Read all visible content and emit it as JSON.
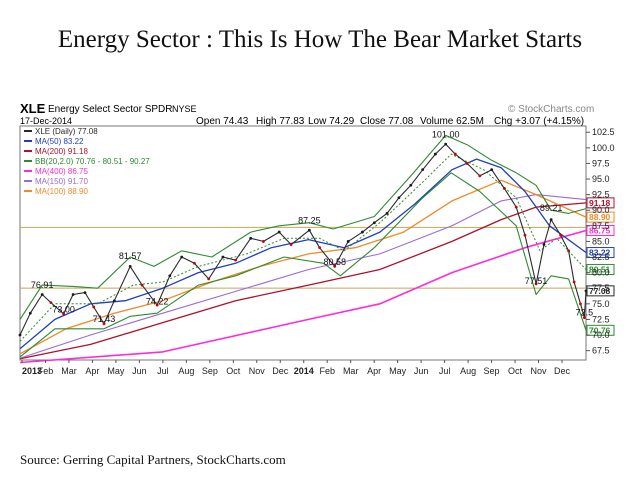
{
  "headline": "Energy Sector : This Is How The Bear Market Starts",
  "source": "Source: Gerring Capital Partners, StockCharts.com",
  "colors": {
    "price": "#2a2a2a",
    "up": "#1a1a1a",
    "down": "#cc0000",
    "ma50": "#1f3fbf",
    "ma200": "#b0102c",
    "bb": "#2e8b2e",
    "ma400": "#ff2bd6",
    "ma150": "#9a6bd9",
    "ma100": "#f08a2a",
    "hline": "#c8a45a",
    "axis": "#555555",
    "grid": "#cccccc"
  },
  "chart_data": {
    "type": "line",
    "header": {
      "ticker": "XLE",
      "name": "Energy Select Sector SPDR",
      "exchange": "NYSE",
      "date": "17-Dec-2014",
      "open": "Open 74.43",
      "high": "High 77.83",
      "low": "Low 74.29",
      "close": "Close 77.08",
      "volume": "Volume 62.5M",
      "change": "Chg +3.07 (+4.15%)",
      "watermark": "© StockCharts.com"
    },
    "legend": [
      {
        "key": "price",
        "text": "XLE (Daily) 77.08"
      },
      {
        "key": "ma50",
        "text": "MA(50) 83.22"
      },
      {
        "key": "ma200",
        "text": "MA(200) 91.18"
      },
      {
        "key": "bb",
        "text": "BB(20,2.0) 70.76 - 80.51 - 90.27"
      },
      {
        "key": "ma400",
        "text": "MA(400) 86.75"
      },
      {
        "key": "ma150",
        "text": "MA(150) 91.70"
      },
      {
        "key": "ma100",
        "text": "MA(100) 88.90"
      }
    ],
    "x_labels": [
      "2013",
      "Feb",
      "Mar",
      "Apr",
      "May",
      "Jun",
      "Jul",
      "Aug",
      "Sep",
      "Oct",
      "Nov",
      "Dec",
      "2014",
      "Feb",
      "Mar",
      "Apr",
      "May",
      "Jun",
      "Jul",
      "Aug",
      "Sep",
      "Oct",
      "Nov",
      "Dec"
    ],
    "x_range": [
      "2013-01-02",
      "2014-12-17"
    ],
    "ylim": [
      66,
      103.5
    ],
    "y_ticks": [
      67.5,
      70.0,
      72.5,
      75.0,
      77.5,
      80.0,
      82.5,
      85.0,
      87.5,
      90.0,
      92.5,
      95.0,
      97.5,
      100.0,
      102.5
    ],
    "y_tick_labels": [
      "67.5",
      "70.0",
      "72.5",
      "75.0",
      "77.5",
      "80.0",
      "82.5",
      "85.0",
      "87.5",
      "90.0",
      "92.5",
      "95.0",
      "97.5",
      "100.0",
      "102.5"
    ],
    "horizontal_lines": [
      87.25,
      77.51
    ],
    "right_tags": [
      {
        "value": 91.18,
        "text": "91.18",
        "key": "ma200"
      },
      {
        "value": 88.9,
        "text": "88.90",
        "key": "ma100"
      },
      {
        "value": 86.75,
        "text": "86.75",
        "key": "ma400"
      },
      {
        "value": 83.22,
        "text": "83.22",
        "key": "ma50"
      },
      {
        "value": 80.51,
        "text": "80.51",
        "key": "bb"
      },
      {
        "value": 77.08,
        "text": "77.08",
        "key": "price"
      },
      {
        "value": 70.76,
        "text": "70.76",
        "key": "bb"
      }
    ],
    "annotations": [
      {
        "date": "2013-01-30",
        "value": 76.91,
        "text": "76.91"
      },
      {
        "date": "2013-02-26",
        "value": 73.0,
        "text": "73.00"
      },
      {
        "date": "2013-04-18",
        "value": 71.43,
        "text": "71.43"
      },
      {
        "date": "2013-05-21",
        "value": 81.57,
        "text": "81.57"
      },
      {
        "date": "2013-06-24",
        "value": 74.22,
        "text": "74.22"
      },
      {
        "date": "2014-01-02",
        "value": 87.25,
        "text": "87.25"
      },
      {
        "date": "2014-02-03",
        "value": 80.58,
        "text": "80.58"
      },
      {
        "date": "2014-06-23",
        "value": 101.0,
        "text": "101.00"
      },
      {
        "date": "2014-10-15",
        "value": 77.51,
        "text": "77.51"
      },
      {
        "date": "2014-11-03",
        "value": 89.21,
        "text": "89.21"
      },
      {
        "date": "2014-12-15",
        "value": 72.5,
        "text": "72.5"
      }
    ],
    "price_series": [
      {
        "date": "2013-01-02",
        "close": 70.0
      },
      {
        "date": "2013-01-15",
        "close": 73.5
      },
      {
        "date": "2013-01-30",
        "close": 76.5
      },
      {
        "date": "2013-02-10",
        "close": 75.2
      },
      {
        "date": "2013-02-26",
        "close": 73.4
      },
      {
        "date": "2013-03-10",
        "close": 76.5
      },
      {
        "date": "2013-03-25",
        "close": 76.8
      },
      {
        "date": "2013-04-05",
        "close": 74.5
      },
      {
        "date": "2013-04-18",
        "close": 71.8
      },
      {
        "date": "2013-05-01",
        "close": 75.5
      },
      {
        "date": "2013-05-21",
        "close": 81.0
      },
      {
        "date": "2013-06-05",
        "close": 78.0
      },
      {
        "date": "2013-06-24",
        "close": 74.8
      },
      {
        "date": "2013-07-10",
        "close": 79.5
      },
      {
        "date": "2013-07-25",
        "close": 82.5
      },
      {
        "date": "2013-08-10",
        "close": 81.5
      },
      {
        "date": "2013-08-28",
        "close": 79.0
      },
      {
        "date": "2013-09-15",
        "close": 82.5
      },
      {
        "date": "2013-10-01",
        "close": 82.0
      },
      {
        "date": "2013-10-20",
        "close": 85.5
      },
      {
        "date": "2013-11-05",
        "close": 85.0
      },
      {
        "date": "2013-11-25",
        "close": 86.5
      },
      {
        "date": "2013-12-10",
        "close": 84.5
      },
      {
        "date": "2014-01-02",
        "close": 86.8
      },
      {
        "date": "2014-01-15",
        "close": 84.0
      },
      {
        "date": "2014-02-03",
        "close": 81.0
      },
      {
        "date": "2014-02-20",
        "close": 85.0
      },
      {
        "date": "2014-03-10",
        "close": 86.5
      },
      {
        "date": "2014-03-25",
        "close": 88.0
      },
      {
        "date": "2014-04-10",
        "close": 89.5
      },
      {
        "date": "2014-04-25",
        "close": 92.0
      },
      {
        "date": "2014-05-10",
        "close": 94.0
      },
      {
        "date": "2014-05-25",
        "close": 96.5
      },
      {
        "date": "2014-06-10",
        "close": 99.0
      },
      {
        "date": "2014-06-23",
        "close": 100.6
      },
      {
        "date": "2014-07-05",
        "close": 99.0
      },
      {
        "date": "2014-07-20",
        "close": 97.5
      },
      {
        "date": "2014-08-05",
        "close": 95.5
      },
      {
        "date": "2014-08-20",
        "close": 96.5
      },
      {
        "date": "2014-09-05",
        "close": 93.5
      },
      {
        "date": "2014-09-20",
        "close": 90.5
      },
      {
        "date": "2014-10-01",
        "close": 86.0
      },
      {
        "date": "2014-10-15",
        "close": 78.2
      },
      {
        "date": "2014-10-25",
        "close": 84.5
      },
      {
        "date": "2014-11-03",
        "close": 88.5
      },
      {
        "date": "2014-11-15",
        "close": 86.0
      },
      {
        "date": "2014-11-25",
        "close": 83.5
      },
      {
        "date": "2014-12-02",
        "close": 78.5
      },
      {
        "date": "2014-12-10",
        "close": 75.0
      },
      {
        "date": "2014-12-15",
        "close": 72.8
      },
      {
        "date": "2014-12-17",
        "close": 77.08
      }
    ],
    "ma50_series": [
      {
        "date": "2013-01-02",
        "value": 67.8
      },
      {
        "date": "2013-02-15",
        "value": 72.5
      },
      {
        "date": "2013-04-01",
        "value": 75.0
      },
      {
        "date": "2013-05-15",
        "value": 75.5
      },
      {
        "date": "2013-07-01",
        "value": 77.5
      },
      {
        "date": "2013-08-15",
        "value": 80.0
      },
      {
        "date": "2013-10-01",
        "value": 81.5
      },
      {
        "date": "2013-11-15",
        "value": 84.0
      },
      {
        "date": "2014-01-01",
        "value": 85.3
      },
      {
        "date": "2014-02-15",
        "value": 84.0
      },
      {
        "date": "2014-04-01",
        "value": 86.5
      },
      {
        "date": "2014-05-15",
        "value": 91.0
      },
      {
        "date": "2014-07-01",
        "value": 96.5
      },
      {
        "date": "2014-08-01",
        "value": 98.2
      },
      {
        "date": "2014-09-01",
        "value": 96.8
      },
      {
        "date": "2014-10-01",
        "value": 93.0
      },
      {
        "date": "2014-11-01",
        "value": 87.5
      },
      {
        "date": "2014-12-17",
        "value": 83.22
      }
    ],
    "ma100_series": [
      {
        "date": "2013-01-02",
        "value": 67.0
      },
      {
        "date": "2013-03-01",
        "value": 71.0
      },
      {
        "date": "2013-05-01",
        "value": 73.5
      },
      {
        "date": "2013-07-01",
        "value": 75.5
      },
      {
        "date": "2013-09-01",
        "value": 78.5
      },
      {
        "date": "2013-11-01",
        "value": 81.0
      },
      {
        "date": "2014-01-01",
        "value": 83.0
      },
      {
        "date": "2014-03-01",
        "value": 84.0
      },
      {
        "date": "2014-05-01",
        "value": 86.5
      },
      {
        "date": "2014-07-01",
        "value": 91.5
      },
      {
        "date": "2014-09-01",
        "value": 94.8
      },
      {
        "date": "2014-10-15",
        "value": 92.5
      },
      {
        "date": "2014-12-17",
        "value": 88.9
      }
    ],
    "ma150_series": [
      {
        "date": "2013-01-02",
        "value": 66.3
      },
      {
        "date": "2013-04-01",
        "value": 70.0
      },
      {
        "date": "2013-07-01",
        "value": 73.5
      },
      {
        "date": "2013-10-01",
        "value": 77.0
      },
      {
        "date": "2014-01-01",
        "value": 80.5
      },
      {
        "date": "2014-04-01",
        "value": 83.0
      },
      {
        "date": "2014-07-01",
        "value": 87.5
      },
      {
        "date": "2014-09-01",
        "value": 91.5
      },
      {
        "date": "2014-10-15",
        "value": 92.5
      },
      {
        "date": "2014-12-17",
        "value": 91.7
      }
    ],
    "ma200_series": [
      {
        "date": "2013-01-02",
        "value": 66.2
      },
      {
        "date": "2013-04-01",
        "value": 68.5
      },
      {
        "date": "2013-07-01",
        "value": 72.0
      },
      {
        "date": "2013-10-01",
        "value": 75.5
      },
      {
        "date": "2014-01-01",
        "value": 78.0
      },
      {
        "date": "2014-04-01",
        "value": 80.5
      },
      {
        "date": "2014-07-01",
        "value": 85.0
      },
      {
        "date": "2014-09-01",
        "value": 88.5
      },
      {
        "date": "2014-10-15",
        "value": 90.5
      },
      {
        "date": "2014-12-17",
        "value": 91.18
      }
    ],
    "ma400_series": [
      {
        "date": "2013-01-02",
        "value": 65.6
      },
      {
        "date": "2013-07-01",
        "value": 67.3
      },
      {
        "date": "2014-01-01",
        "value": 72.5
      },
      {
        "date": "2014-04-01",
        "value": 75.0
      },
      {
        "date": "2014-07-01",
        "value": 80.0
      },
      {
        "date": "2014-10-01",
        "value": 84.0
      },
      {
        "date": "2014-12-17",
        "value": 86.75
      }
    ],
    "bb_upper_series": [
      {
        "date": "2013-01-02",
        "value": 72.5
      },
      {
        "date": "2013-01-30",
        "value": 78.0
      },
      {
        "date": "2013-03-10",
        "value": 77.8
      },
      {
        "date": "2013-04-10",
        "value": 77.5
      },
      {
        "date": "2013-05-21",
        "value": 82.5
      },
      {
        "date": "2013-06-20",
        "value": 81.0
      },
      {
        "date": "2013-07-25",
        "value": 83.5
      },
      {
        "date": "2013-09-01",
        "value": 82.5
      },
      {
        "date": "2013-10-20",
        "value": 86.5
      },
      {
        "date": "2013-11-25",
        "value": 87.5
      },
      {
        "date": "2014-01-02",
        "value": 88.0
      },
      {
        "date": "2014-02-01",
        "value": 87.0
      },
      {
        "date": "2014-03-25",
        "value": 89.0
      },
      {
        "date": "2014-05-10",
        "value": 95.5
      },
      {
        "date": "2014-06-23",
        "value": 102.0
      },
      {
        "date": "2014-07-20",
        "value": 100.5
      },
      {
        "date": "2014-08-20",
        "value": 98.0
      },
      {
        "date": "2014-09-20",
        "value": 96.0
      },
      {
        "date": "2014-10-15",
        "value": 94.0
      },
      {
        "date": "2014-11-03",
        "value": 90.0
      },
      {
        "date": "2014-11-25",
        "value": 89.5
      },
      {
        "date": "2014-12-17",
        "value": 90.27
      }
    ],
    "bb_middle_series": [
      {
        "date": "2013-01-02",
        "value": 69.0
      },
      {
        "date": "2013-02-15",
        "value": 75.0
      },
      {
        "date": "2013-04-10",
        "value": 75.0
      },
      {
        "date": "2013-05-25",
        "value": 78.0
      },
      {
        "date": "2013-07-01",
        "value": 78.5
      },
      {
        "date": "2013-08-15",
        "value": 81.0
      },
      {
        "date": "2013-10-15",
        "value": 83.0
      },
      {
        "date": "2013-12-01",
        "value": 85.5
      },
      {
        "date": "2014-01-15",
        "value": 85.5
      },
      {
        "date": "2014-02-15",
        "value": 83.5
      },
      {
        "date": "2014-04-01",
        "value": 88.0
      },
      {
        "date": "2014-05-25",
        "value": 94.5
      },
      {
        "date": "2014-06-30",
        "value": 99.0
      },
      {
        "date": "2014-08-10",
        "value": 96.5
      },
      {
        "date": "2014-09-20",
        "value": 92.0
      },
      {
        "date": "2014-10-20",
        "value": 83.5
      },
      {
        "date": "2014-11-10",
        "value": 85.5
      },
      {
        "date": "2014-12-17",
        "value": 80.51
      }
    ],
    "bb_lower_series": [
      {
        "date": "2013-01-02",
        "value": 66.5
      },
      {
        "date": "2013-02-15",
        "value": 71.0
      },
      {
        "date": "2013-04-18",
        "value": 71.0
      },
      {
        "date": "2013-05-21",
        "value": 73.0
      },
      {
        "date": "2013-06-24",
        "value": 73.5
      },
      {
        "date": "2013-08-15",
        "value": 78.0
      },
      {
        "date": "2013-10-01",
        "value": 79.5
      },
      {
        "date": "2013-12-01",
        "value": 82.5
      },
      {
        "date": "2014-01-20",
        "value": 81.5
      },
      {
        "date": "2014-02-10",
        "value": 79.5
      },
      {
        "date": "2014-03-25",
        "value": 84.0
      },
      {
        "date": "2014-05-25",
        "value": 92.0
      },
      {
        "date": "2014-06-30",
        "value": 96.0
      },
      {
        "date": "2014-08-05",
        "value": 93.0
      },
      {
        "date": "2014-09-20",
        "value": 87.5
      },
      {
        "date": "2014-10-15",
        "value": 76.5
      },
      {
        "date": "2014-11-03",
        "value": 79.5
      },
      {
        "date": "2014-11-25",
        "value": 79.0
      },
      {
        "date": "2014-12-17",
        "value": 70.76
      }
    ]
  }
}
